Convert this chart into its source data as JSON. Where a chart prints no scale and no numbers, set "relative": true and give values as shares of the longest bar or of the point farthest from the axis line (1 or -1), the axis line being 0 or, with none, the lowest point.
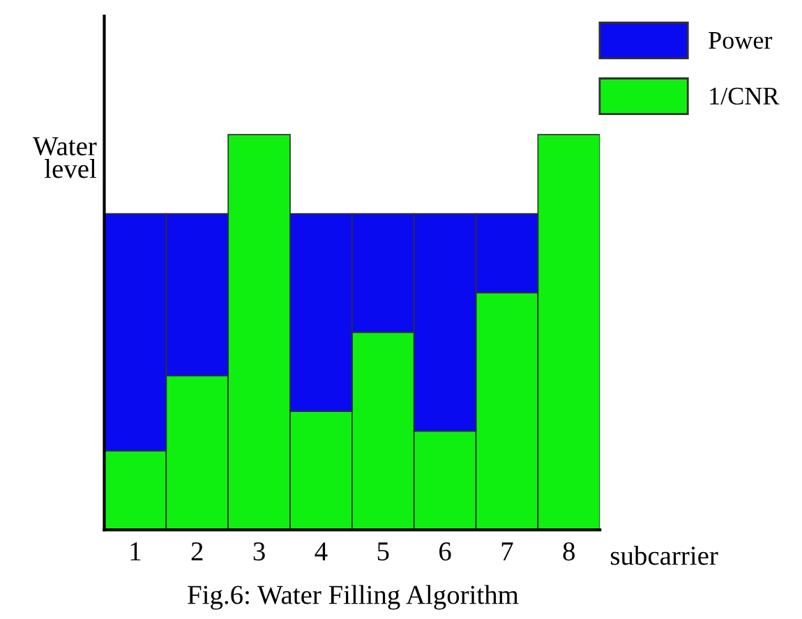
{
  "chart_data": {
    "type": "bar",
    "title": "Fig.6: Water Filling Algorithm",
    "xlabel": "subcarrier",
    "categories": [
      "1",
      "2",
      "3",
      "4",
      "5",
      "6",
      "7",
      "8"
    ],
    "stacked": true,
    "relative": true,
    "legend": "top right",
    "grid": false,
    "series": [
      {
        "name": "1/CNR",
        "color": "#10f010",
        "values": [
          0.2,
          0.39,
          1.0,
          0.3,
          0.5,
          0.25,
          0.6,
          1.0
        ]
      },
      {
        "name": "Power",
        "color": "#0a0af0",
        "values": [
          0.6,
          0.41,
          null,
          0.5,
          0.3,
          0.55,
          0.2,
          null
        ]
      }
    ],
    "annotations": [
      "Water\nlevel"
    ]
  }
}
